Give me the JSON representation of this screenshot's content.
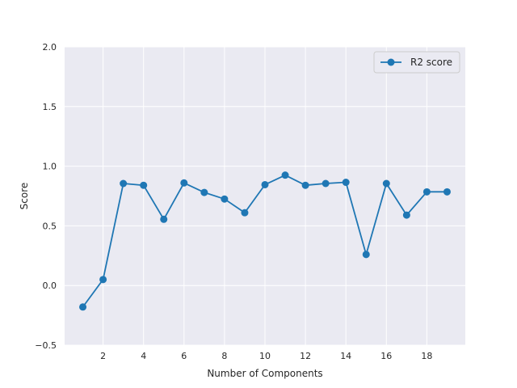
{
  "chart_data": {
    "type": "line",
    "title": "",
    "xlabel": "Number of Components",
    "ylabel": "Score",
    "xlim": [
      0.1,
      19.9
    ],
    "ylim": [
      -0.5,
      2.0
    ],
    "xticks": [
      2,
      4,
      6,
      8,
      10,
      12,
      14,
      16,
      18
    ],
    "xtick_labels": [
      "2",
      "4",
      "6",
      "8",
      "10",
      "12",
      "14",
      "16",
      "18"
    ],
    "yticks": [
      -0.5,
      0.0,
      0.5,
      1.0,
      1.5,
      2.0
    ],
    "ytick_labels": [
      "−0.5",
      "0.0",
      "0.5",
      "1.0",
      "1.5",
      "2.0"
    ],
    "grid": true,
    "legend_position": "top-right",
    "background_color": "#eaeaf2",
    "grid_color": "#ffffff",
    "series": [
      {
        "name": "R2 score",
        "color": "#1f77b4",
        "marker": "circle",
        "x": [
          1,
          2,
          3,
          4,
          5,
          6,
          7,
          8,
          9,
          10,
          11,
          12,
          13,
          14,
          15,
          16,
          17,
          18,
          19
        ],
        "y": [
          -0.18,
          0.05,
          0.855,
          0.84,
          0.555,
          0.86,
          0.78,
          0.725,
          0.61,
          0.845,
          0.925,
          0.84,
          0.855,
          0.865,
          0.26,
          0.855,
          0.59,
          0.785,
          0.785
        ]
      }
    ]
  }
}
